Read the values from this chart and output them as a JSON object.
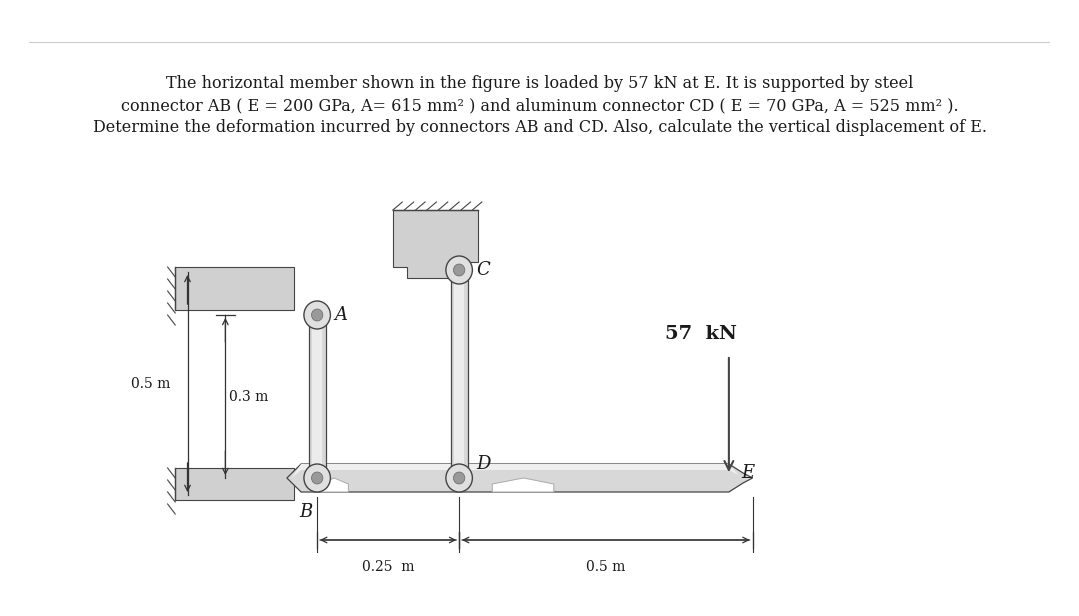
{
  "title_line1": "The horizontal member shown in the figure is loaded by 57 kN at E. It is supported by steel",
  "title_line2": "connector AB ( E = 200 GPa, A= 615 mm² ) and aluminum connector CD ( E = 70 GPa, A = 525 mm² ).",
  "title_line3": "Determine the deformation incurred by connectors AB and CD. Also, calculate the vertical displacement of E.",
  "bg_color": "#ffffff",
  "top_bar_color": "#e0e0e0",
  "connector_color_light": "#d8d8d8",
  "connector_color_dark": "#b8b8b8",
  "bracket_color": "#d0d0d0",
  "beam_color_top": "#e8e8e8",
  "beam_color_bottom": "#c8c8c8",
  "line_color": "#444444",
  "dim_color": "#333333",
  "text_color": "#1a1a1a",
  "pin_outer": "#cccccc",
  "pin_inner": "#777777",
  "label_A": "A",
  "label_B": "B",
  "label_C": "C",
  "label_D": "D",
  "label_E": "E",
  "force_label": "57  kN",
  "dim_05m_left": "0.5 m",
  "dim_03m": "0.3 m",
  "dim_025m": "0.25  m",
  "dim_05m_right": "0.5 m",
  "fontsize_title": 11.5,
  "fontsize_label": 11,
  "fontsize_dim": 10,
  "fontsize_force": 14
}
